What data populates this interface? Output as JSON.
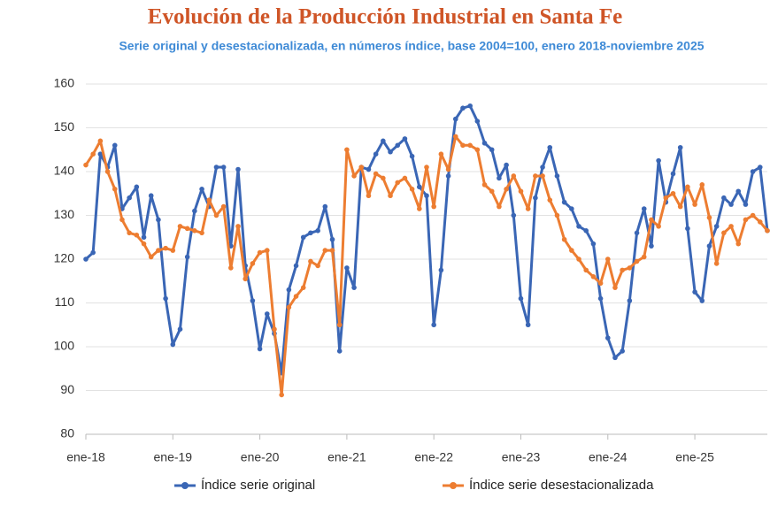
{
  "chart_data": {
    "type": "line",
    "title": "Evolución de la Producción Industrial en Santa Fe",
    "subtitle": "Serie original y desestacionalizada, en números índice, base 2004=100, enero 2018-noviembre 2025",
    "categories": [
      "ene-18",
      null,
      null,
      null,
      null,
      null,
      null,
      null,
      null,
      null,
      null,
      null,
      "ene-19",
      null,
      null,
      null,
      null,
      null,
      null,
      null,
      null,
      null,
      null,
      null,
      "ene-20",
      null,
      null,
      null,
      null,
      null,
      null,
      null,
      null,
      null,
      null,
      null,
      "ene-21",
      null,
      null,
      null,
      null,
      null,
      null,
      null,
      null,
      null,
      null,
      null,
      "ene-22",
      null,
      null,
      null,
      null,
      null,
      null,
      null,
      null,
      null,
      null,
      null,
      "ene-23",
      null,
      null,
      null,
      null,
      null,
      null,
      null,
      null,
      null,
      null,
      null,
      "ene-24",
      null,
      null,
      null,
      null,
      null,
      null,
      null,
      null,
      null,
      null,
      null,
      "ene-25",
      null,
      null,
      null,
      null,
      null,
      null,
      null,
      null,
      null,
      null
    ],
    "series": [
      {
        "name": "Índice serie original",
        "color": "#3a66b5",
        "values": [
          120,
          121.5,
          144,
          141,
          146,
          131.5,
          134,
          136.5,
          125,
          134.5,
          129,
          111,
          100.5,
          104,
          120.5,
          131,
          136,
          132,
          141,
          141,
          123,
          140.5,
          118.5,
          110.5,
          99.5,
          107.5,
          103,
          94,
          113,
          118.5,
          125,
          126,
          126.5,
          132,
          124.5,
          99,
          118,
          113.5,
          141,
          140.5,
          144,
          147,
          144.5,
          146,
          147.5,
          143.5,
          136.5,
          134.5,
          105,
          117.5,
          139,
          152,
          154.5,
          155,
          151.5,
          146.5,
          145,
          138.5,
          141.5,
          130,
          111,
          105,
          134,
          141,
          145.5,
          139,
          133,
          131.5,
          127.5,
          126.5,
          123.5,
          111,
          102,
          97.5,
          99,
          110.5,
          126,
          131.5,
          123,
          142.5,
          133,
          139.5,
          145.5,
          127,
          112.5,
          110.5,
          123,
          127.5,
          134,
          132.5,
          135.5,
          132.5,
          140,
          141,
          126.5
        ]
      },
      {
        "name": "Índice serie desestacionalizada",
        "color": "#ed7d31",
        "values": [
          141.5,
          144,
          147,
          140,
          136,
          129,
          126,
          125.5,
          123.5,
          120.5,
          122,
          122.5,
          122,
          127.5,
          127,
          126.5,
          126,
          133.5,
          130,
          132,
          118,
          127.5,
          115.5,
          119,
          121.5,
          122,
          104,
          89,
          109,
          111.5,
          113.5,
          119.5,
          118.5,
          122,
          122,
          105,
          145,
          139,
          141,
          134.5,
          139.5,
          138.5,
          134.5,
          137.5,
          138.5,
          136,
          131.5,
          141,
          132,
          144,
          140.5,
          148,
          146,
          146,
          145,
          137,
          135.5,
          132,
          136,
          139,
          135.5,
          131.5,
          139,
          139,
          133.5,
          130,
          124.5,
          122,
          120,
          117.5,
          116,
          114.5,
          120,
          113.5,
          117.5,
          118,
          119.5,
          120.5,
          129,
          127.5,
          134,
          135,
          132,
          136.5,
          132.5,
          137,
          129.5,
          119,
          126,
          127.5,
          123.5,
          129,
          130,
          128.5,
          126.5
        ]
      }
    ],
    "ylim": [
      80,
      160
    ],
    "yticks": [
      80,
      90,
      100,
      110,
      120,
      130,
      140,
      150,
      160
    ],
    "grid": true,
    "legend": "bottom"
  }
}
